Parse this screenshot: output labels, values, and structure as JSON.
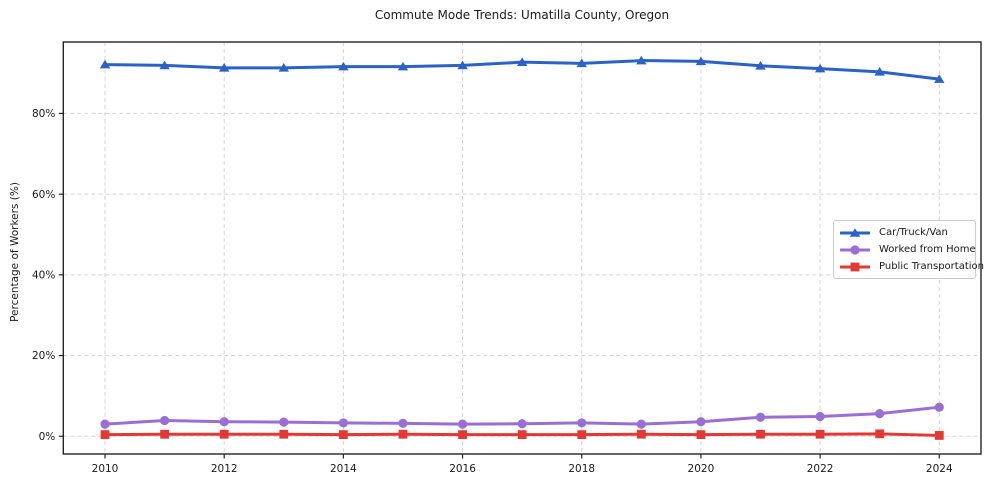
{
  "title": "Commute Mode Trends: Umatilla County, Oregon",
  "chart_data": {
    "type": "line",
    "title": "Commute Mode Trends: Umatilla County, Oregon",
    "xlabel": "",
    "ylabel": "Percentage of Workers (%)",
    "x": [
      2010,
      2011,
      2012,
      2013,
      2014,
      2015,
      2016,
      2017,
      2018,
      2019,
      2020,
      2021,
      2022,
      2023,
      2024
    ],
    "series": [
      {
        "name": "Car/Truck/Van",
        "color": "#2b62c5",
        "marker": "triangle",
        "values": [
          92.1,
          91.9,
          91.3,
          91.3,
          91.6,
          91.6,
          91.9,
          92.7,
          92.4,
          93.1,
          92.9,
          91.8,
          91.1,
          90.3,
          88.5
        ]
      },
      {
        "name": "Worked from Home",
        "color": "#9a6fd4",
        "marker": "circle",
        "values": [
          3.0,
          3.9,
          3.6,
          3.5,
          3.3,
          3.2,
          3.0,
          3.1,
          3.3,
          3.0,
          3.6,
          4.7,
          4.9,
          5.6,
          7.2
        ]
      },
      {
        "name": "Public Transportation",
        "color": "#e23935",
        "marker": "square",
        "values": [
          0.4,
          0.5,
          0.5,
          0.5,
          0.4,
          0.5,
          0.4,
          0.4,
          0.4,
          0.5,
          0.4,
          0.5,
          0.5,
          0.6,
          0.2
        ]
      }
    ],
    "x_tick_values": [
      2010,
      2012,
      2014,
      2016,
      2018,
      2020,
      2022,
      2024
    ],
    "x_tick_labels": [
      "2010",
      "2012",
      "2014",
      "2016",
      "2018",
      "2020",
      "2022",
      "2024"
    ],
    "y_tick_values": [
      0,
      20,
      40,
      60,
      80
    ],
    "y_tick_labels": [
      "0%",
      "20%",
      "40%",
      "60%",
      "80%"
    ],
    "xlim": [
      2009.3,
      2024.7
    ],
    "ylim": [
      -4.4,
      97.7
    ],
    "grid": true,
    "grid_style": "dashed",
    "grid_color": "#d5d5d5",
    "spine_color": "#242424",
    "legend_position": "center right"
  }
}
